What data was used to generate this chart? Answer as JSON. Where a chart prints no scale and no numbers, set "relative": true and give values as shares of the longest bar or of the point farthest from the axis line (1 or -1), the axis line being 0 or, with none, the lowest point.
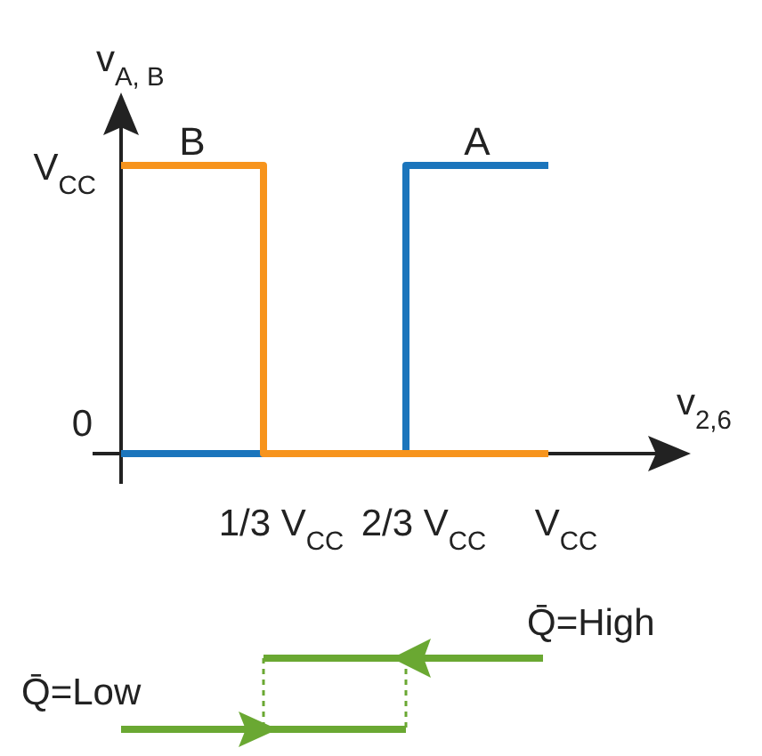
{
  "chart_data": {
    "type": "step",
    "xlabel": "v$_{2,6}$",
    "ylabel": "v$_{A, B}$",
    "relative": true,
    "categories": [
      null,
      "1/3 V$_{CC}$",
      "2/3 V$_{CC}$",
      "V$_{CC}$"
    ],
    "series": [
      {
        "name": "A",
        "color": "#1b75bc",
        "values": [
          0,
          0,
          1,
          1
        ]
      },
      {
        "name": "B",
        "color": "#f7941d",
        "values": [
          1,
          0,
          0,
          0
        ]
      }
    ],
    "marker": "none",
    "line_style": "solid",
    "annotations": [
      "0",
      "V$_{CC}$",
      "Q̄=High",
      "Q̄=Low"
    ]
  }
}
